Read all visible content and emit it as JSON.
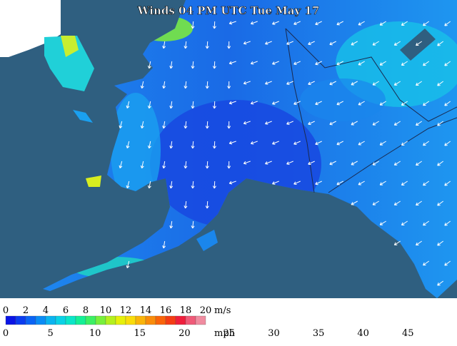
{
  "title": "Winds 04 PM UTC Tue May 17",
  "legend": {
    "ms_labels": [
      "0",
      "2",
      "4",
      "6",
      "8",
      "10",
      "12",
      "14",
      "16",
      "18",
      "20"
    ],
    "ms_unit": "m/s",
    "mph_labels": [
      "0",
      "5",
      "10",
      "15",
      "20",
      "25",
      "30",
      "35",
      "40",
      "45"
    ],
    "mph_unit": "mph",
    "colors": [
      "#0a14e6",
      "#0a3cf0",
      "#0a64f5",
      "#0a8cf5",
      "#0ab4f0",
      "#0ad2e6",
      "#0ae6c8",
      "#14f096",
      "#3cf064",
      "#78f03c",
      "#b4f01e",
      "#e6f00a",
      "#fadc0a",
      "#fab40a",
      "#fa8c0a",
      "#fa640a",
      "#f53c14",
      "#f01e3c",
      "#f05a78",
      "#f08ca0"
    ]
  }
}
